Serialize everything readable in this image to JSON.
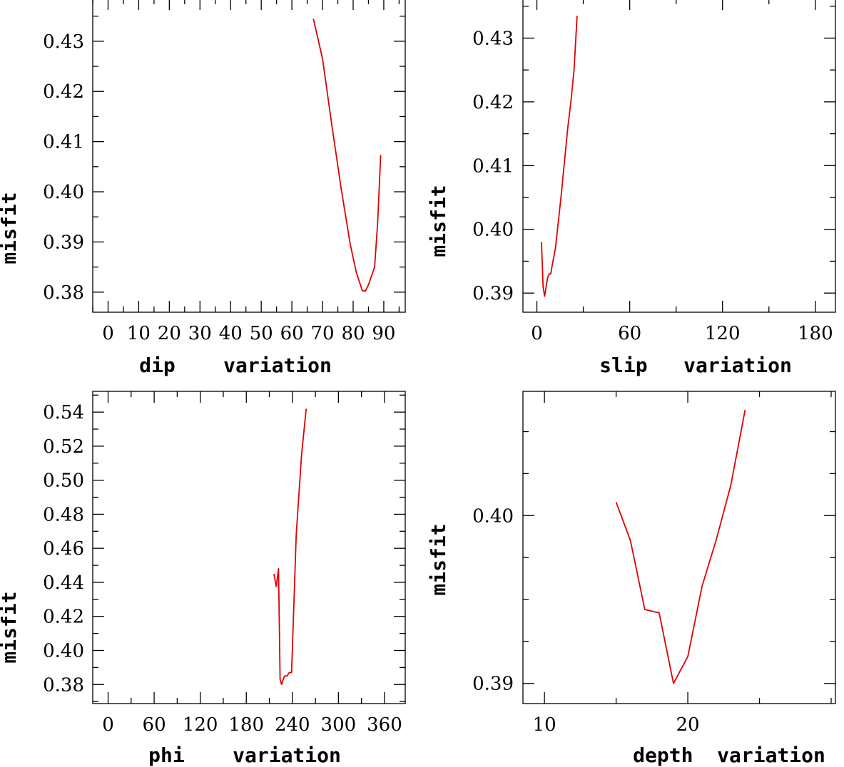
{
  "chart_data": [
    {
      "type": "line",
      "xlabel": "dip    variation",
      "ylabel": "misfit",
      "xlim": [
        -5,
        97
      ],
      "ylim": [
        0.376,
        0.4385
      ],
      "xticks": [
        0,
        10,
        20,
        30,
        40,
        50,
        60,
        70,
        80,
        90
      ],
      "yticks": [
        0.38,
        0.39,
        0.4,
        0.41,
        0.42,
        0.43
      ],
      "ytick_labels": [
        "0.38",
        "0.39",
        "0.40",
        "0.41",
        "0.42",
        "0.43"
      ],
      "minor_x_step": 5,
      "minor_y_step": 0.005,
      "series": [
        {
          "color": "#e00000",
          "x": [
            67,
            70,
            73,
            76,
            79,
            81,
            83,
            84,
            85,
            87,
            88,
            89
          ],
          "y": [
            0.4345,
            0.4265,
            0.4135,
            0.401,
            0.3897,
            0.384,
            0.3803,
            0.3802,
            0.3815,
            0.385,
            0.394,
            0.4073
          ]
        }
      ]
    },
    {
      "type": "line",
      "xlabel": "slip   variation",
      "ylabel": "misfit",
      "xlim": [
        -9,
        193
      ],
      "ylim": [
        0.387,
        0.4362
      ],
      "xticks": [
        0,
        60,
        120,
        180
      ],
      "yticks": [
        0.39,
        0.4,
        0.41,
        0.42,
        0.43
      ],
      "ytick_labels": [
        "0.39",
        "0.40",
        "0.41",
        "0.42",
        "0.43"
      ],
      "minor_x_step": 30,
      "minor_y_step": 0.005,
      "series": [
        {
          "color": "#e00000",
          "x": [
            3,
            4,
            5,
            6,
            7,
            8,
            9,
            10,
            12,
            14,
            16,
            18,
            20,
            22,
            24,
            26
          ],
          "y": [
            0.398,
            0.391,
            0.3895,
            0.391,
            0.3925,
            0.393,
            0.393,
            0.3945,
            0.397,
            0.4015,
            0.406,
            0.411,
            0.416,
            0.42,
            0.425,
            0.4335
          ]
        }
      ]
    },
    {
      "type": "line",
      "xlabel": "phi    variation",
      "ylabel": "misfit",
      "xlim": [
        -20,
        387
      ],
      "ylim": [
        0.3688,
        0.5522
      ],
      "xticks": [
        0,
        60,
        120,
        180,
        240,
        300,
        360
      ],
      "yticks": [
        0.38,
        0.4,
        0.42,
        0.44,
        0.46,
        0.48,
        0.5,
        0.52,
        0.54
      ],
      "ytick_labels": [
        "0.38",
        "0.40",
        "0.42",
        "0.44",
        "0.46",
        "0.48",
        "0.50",
        "0.52",
        "0.54"
      ],
      "minor_x_step": 30,
      "minor_y_step": 0.01,
      "series": [
        {
          "color": "#e00000",
          "x": [
            216,
            219,
            222,
            224,
            226,
            228,
            230,
            233,
            236,
            239,
            245,
            252,
            258
          ],
          "y": [
            0.445,
            0.4375,
            0.448,
            0.383,
            0.38,
            0.383,
            0.385,
            0.385,
            0.387,
            0.387,
            0.468,
            0.515,
            0.542
          ]
        }
      ]
    },
    {
      "type": "line",
      "xlabel": "depth  variation",
      "ylabel": "misfit",
      "xlim": [
        8.5,
        30.3
      ],
      "ylim": [
        0.3888,
        0.4074
      ],
      "xticks": [
        10,
        20
      ],
      "yticks": [
        0.39,
        0.4
      ],
      "ytick_labels": [
        "0.39",
        "0.40"
      ],
      "minor_x_step": 5,
      "minor_y_step": 0.0025,
      "series": [
        {
          "color": "#e00000",
          "x": [
            15,
            16,
            17,
            18,
            19,
            20,
            21,
            22,
            23,
            24
          ],
          "y": [
            0.4008,
            0.3985,
            0.3944,
            0.3942,
            0.39,
            0.3916,
            0.3958,
            0.3986,
            0.4018,
            0.4063
          ]
        }
      ]
    }
  ]
}
